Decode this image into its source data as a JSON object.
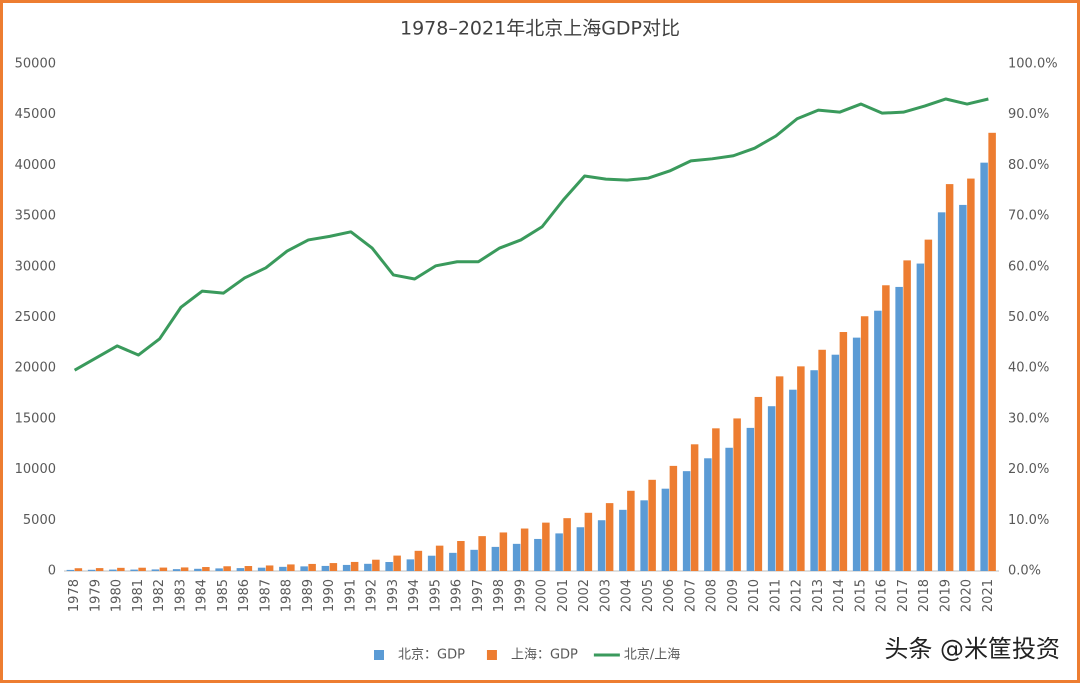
{
  "chart_data": {
    "type": "bar-line",
    "title": "1978–2021年北京上海GDP对比",
    "categories": [
      "1978",
      "1979",
      "1980",
      "1981",
      "1982",
      "1983",
      "1984",
      "1985",
      "1986",
      "1987",
      "1988",
      "1989",
      "1990",
      "1991",
      "1992",
      "1993",
      "1994",
      "1995",
      "1996",
      "1997",
      "1998",
      "1999",
      "2000",
      "2001",
      "2002",
      "2003",
      "2004",
      "2005",
      "2006",
      "2007",
      "2008",
      "2009",
      "2010",
      "2011",
      "2012",
      "2013",
      "2014",
      "2015",
      "2016",
      "2017",
      "2018",
      "2019",
      "2020",
      "2021"
    ],
    "series": [
      {
        "name": "北京：GDP",
        "type": "bar",
        "color": "#5b9bd5",
        "values": [
          109,
          120,
          139,
          139,
          154,
          183,
          217,
          257,
          285,
          327,
          410,
          456,
          501,
          599,
          709,
          887,
          1146,
          1508,
          1790,
          2089,
          2377,
          2678,
          3161,
          3708,
          4315,
          5007,
          6033,
          6970,
          8118,
          9847,
          11115,
          12153,
          14114,
          16252,
          17879,
          19800,
          21331,
          23015,
          25669,
          28015,
          30320,
          35371,
          36103,
          40270
        ]
      },
      {
        "name": "上海：GDP",
        "type": "bar",
        "color": "#ed7d31",
        "values": [
          273,
          286,
          312,
          324,
          337,
          352,
          391,
          467,
          491,
          546,
          649,
          697,
          782,
          894,
          1114,
          1520,
          1991,
          2500,
          2958,
          3439,
          3801,
          4188,
          4771,
          5210,
          5741,
          6694,
          7911,
          8994,
          10366,
          12494,
          14070,
          15046,
          17166,
          19196,
          20182,
          21818,
          23568,
          25123,
          28179,
          30633,
          32680,
          38155,
          38701,
          43215
        ]
      },
      {
        "name": "北京/上海",
        "type": "line",
        "axis": "y2",
        "color": "#3a9a5c",
        "values": [
          39.6,
          42.0,
          44.4,
          42.6,
          45.8,
          52.0,
          55.2,
          54.8,
          57.8,
          59.8,
          63.1,
          65.3,
          66.0,
          66.9,
          63.7,
          58.4,
          57.6,
          60.2,
          61.0,
          61.0,
          63.7,
          65.3,
          67.9,
          73.2,
          77.9,
          77.3,
          77.1,
          77.5,
          78.9,
          80.9,
          81.3,
          81.9,
          83.4,
          85.8,
          89.2,
          90.9,
          90.5,
          92.1,
          90.3,
          90.5,
          91.7,
          93.1,
          92.1,
          93.1
        ]
      }
    ],
    "ylim": [
      0,
      50000
    ],
    "yticks": [
      0,
      5000,
      10000,
      15000,
      20000,
      25000,
      30000,
      35000,
      40000,
      45000,
      50000
    ],
    "y2lim": [
      0,
      100
    ],
    "y2ticks": [
      {
        "value": 0,
        "label": "0.0%"
      },
      {
        "value": 10,
        "label": "10.0%"
      },
      {
        "value": 20,
        "label": "20.0%"
      },
      {
        "value": 30,
        "label": "30.0%"
      },
      {
        "value": 40,
        "label": "40.0%"
      },
      {
        "value": 50,
        "label": "50.0%"
      },
      {
        "value": 60,
        "label": "60.0%"
      },
      {
        "value": 70,
        "label": "70.0%"
      },
      {
        "value": 80,
        "label": "80.0%"
      },
      {
        "value": 90,
        "label": "90.0%"
      },
      {
        "value": 100,
        "label": "100.0%"
      }
    ],
    "grid": false,
    "legend": "bottom",
    "watermark": "头条 @米筐投资"
  }
}
